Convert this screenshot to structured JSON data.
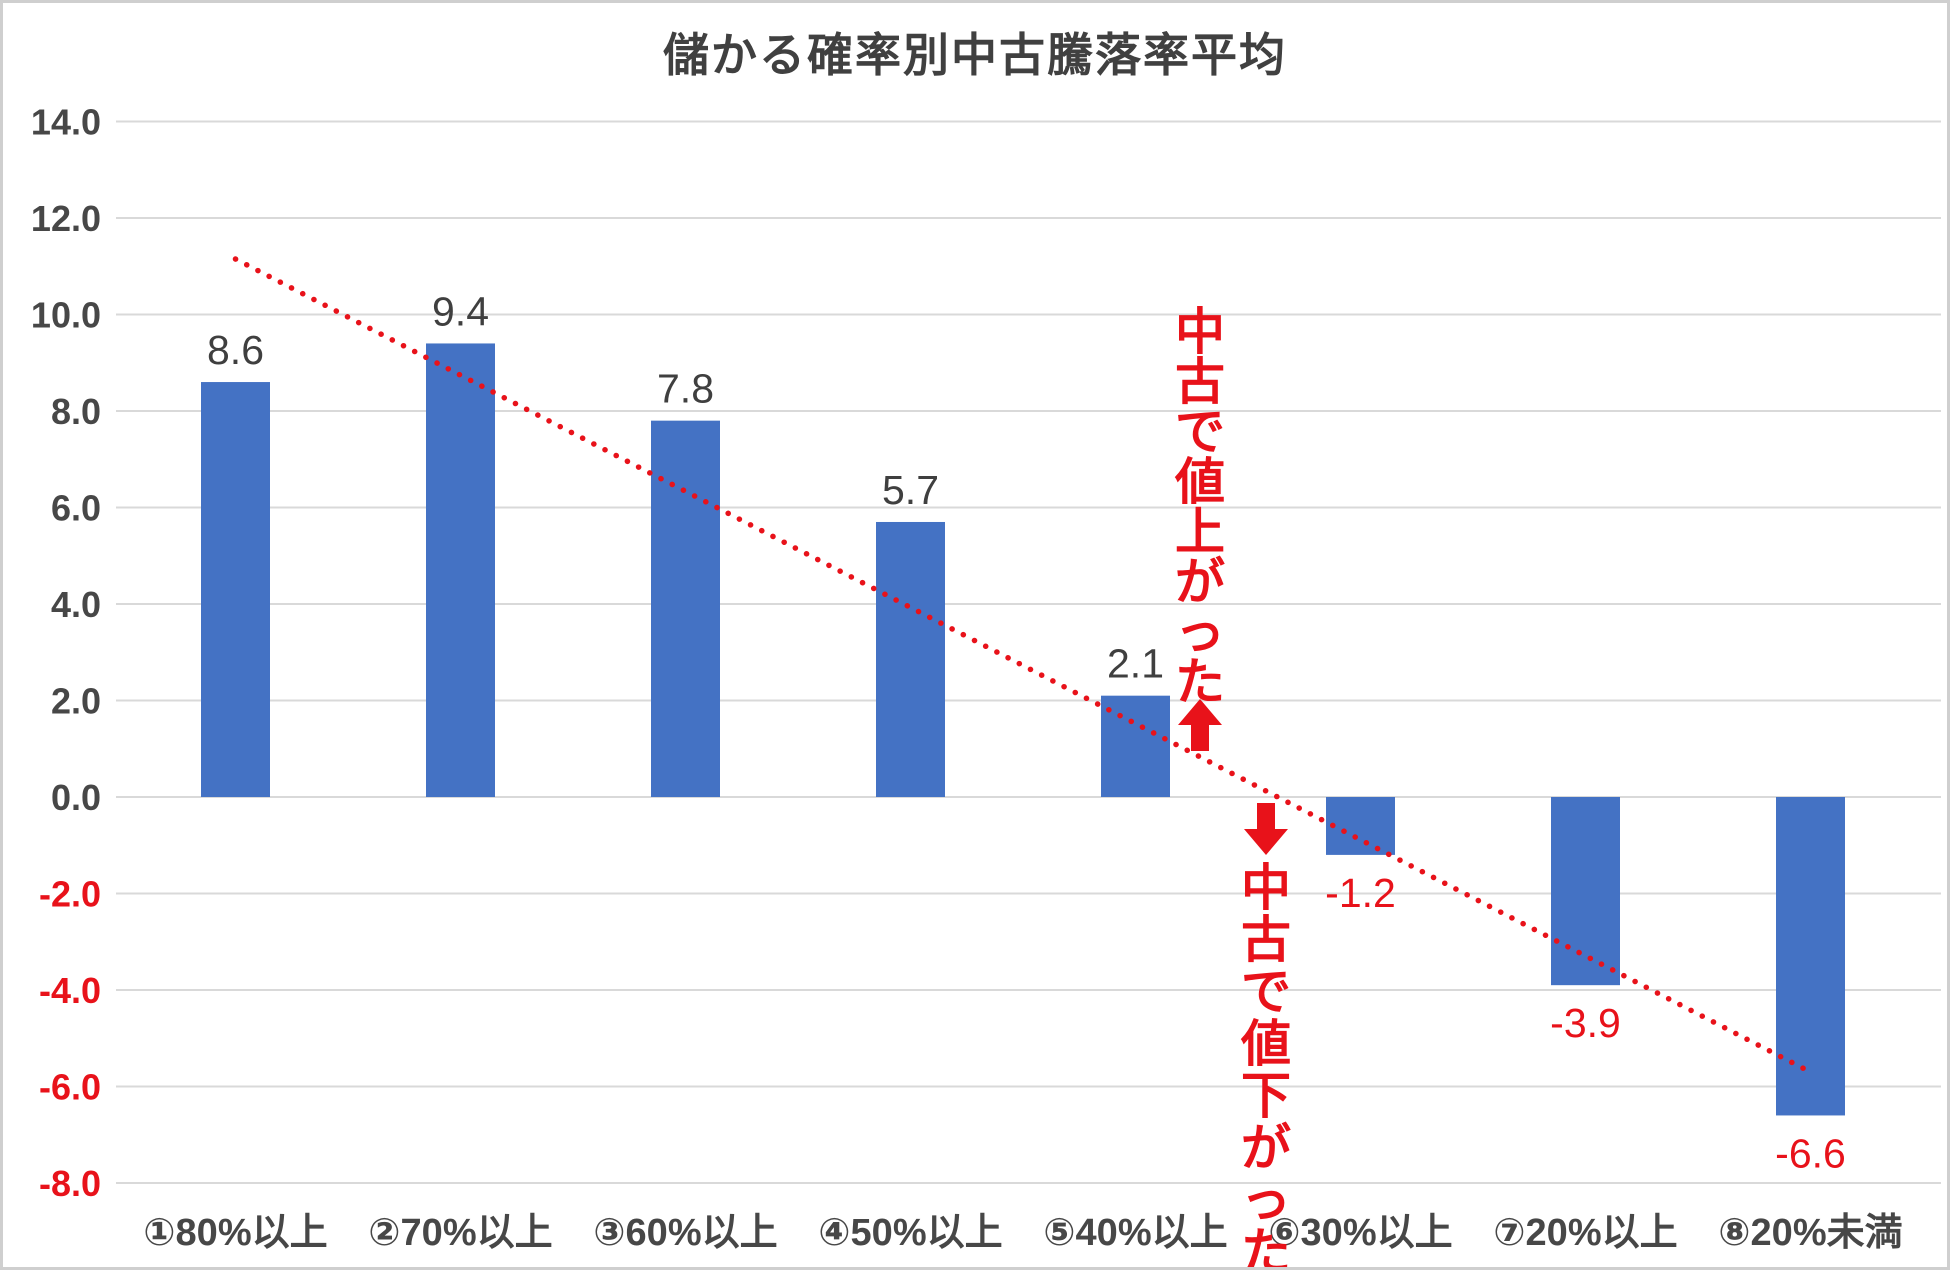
{
  "frame": {
    "background_color": "#ffffff",
    "border_color": "#cfcfcf"
  },
  "chart_data": {
    "type": "bar",
    "title": "儲かる確率別中古騰落率平均",
    "categories": [
      "①80%以上",
      "②70%以上",
      "③60%以上",
      "④50%以上",
      "⑤40%以上",
      "⑥30%以上",
      "⑦20%以上",
      "⑧20%未満"
    ],
    "values": [
      8.6,
      9.4,
      7.8,
      5.7,
      2.1,
      -1.2,
      -3.9,
      -6.6
    ],
    "data_labels": [
      "8.6",
      "9.4",
      "7.8",
      "5.7",
      "2.1",
      "-1.2",
      "-3.9",
      "-6.6"
    ],
    "xlabel": "",
    "ylabel": "",
    "ylim": [
      -8.0,
      14.0
    ],
    "ytick_step": 2.0,
    "ytick_decimals": 1,
    "grid": true,
    "legend": "none",
    "bar_color": "#4472C4",
    "gridline_color": "#d9d9d9",
    "title_color": "#404040",
    "axis_tick_color": "#474747",
    "axis_tick_negative_color": "#e8121a",
    "data_label_color": "#3f3f3f",
    "data_label_negative_color": "#e8121a",
    "trendline": {
      "style": "dotted",
      "color": "#e8121a",
      "start_category_index": 0,
      "end_category_index": 7,
      "y_start": 11.15,
      "y_end": -5.7
    },
    "annotations": [
      {
        "text": "中古で値上がった↑",
        "orientation": "vertical",
        "color": "#e8121a",
        "meaning": "used price went up"
      },
      {
        "text": "↓中古で値下がった",
        "orientation": "vertical",
        "color": "#e8121a",
        "meaning": "used price went down"
      }
    ]
  }
}
